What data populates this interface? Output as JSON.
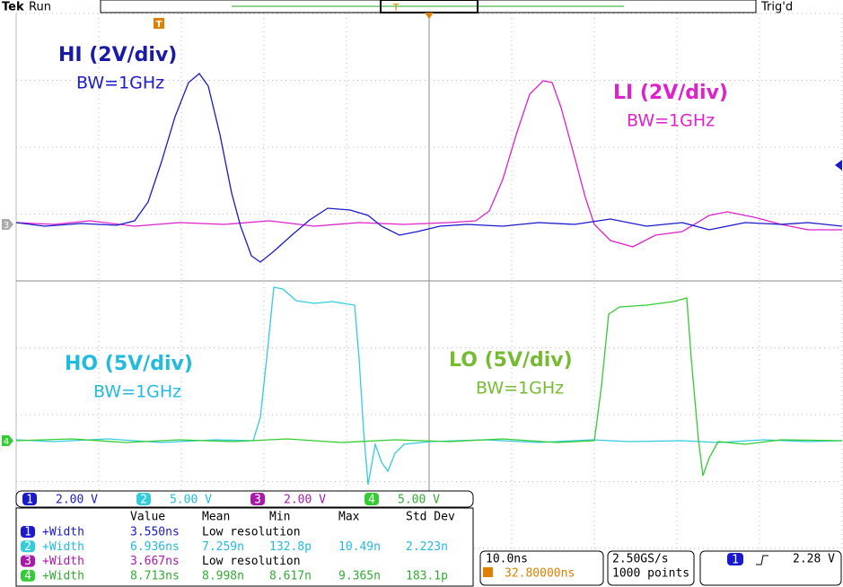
{
  "header": {
    "brand": "Tek",
    "status": "Run",
    "trigger_status": "Trig'd",
    "trigger_marker": "T",
    "position_marker": "T"
  },
  "ground_markers": [
    "3",
    "4"
  ],
  "labels": [
    {
      "title": "HI (2V/div)",
      "bw": "BW=1GHz"
    },
    {
      "title": "LI (2V/div)",
      "bw": "BW=1GHz"
    },
    {
      "title": "HO (5V/div)",
      "bw": "BW=1GHz"
    },
    {
      "title": "LO (5V/div)",
      "bw": "BW=1GHz"
    }
  ],
  "channels": [
    {
      "num": "1",
      "scale": "2.00 V"
    },
    {
      "num": "2",
      "scale": "5.00 V"
    },
    {
      "num": "3",
      "scale": "2.00 V"
    },
    {
      "num": "4",
      "scale": "5.00 V"
    }
  ],
  "measurements": {
    "columns": [
      "Value",
      "Mean",
      "Min",
      "Max",
      "Std Dev"
    ],
    "rows": [
      {
        "ch": "1",
        "name": "+Width",
        "cells": [
          "3.550ns",
          "Low resolution"
        ]
      },
      {
        "ch": "2",
        "name": "+Width",
        "cells": [
          "6.936ns",
          "7.259n",
          "132.8p",
          "10.49n",
          "2.223n"
        ]
      },
      {
        "ch": "3",
        "name": "+Width",
        "cells": [
          "3.667ns",
          "Low resolution"
        ]
      },
      {
        "ch": "4",
        "name": "+Width",
        "cells": [
          "8.713ns",
          "8.998n",
          "8.617n",
          "9.365n",
          "183.1p"
        ]
      }
    ]
  },
  "timebase": {
    "scale": "10.0ns",
    "delay": "32.80000ns",
    "sample_rate": "2.50GS/s",
    "record": "1000 points"
  },
  "trigger": {
    "source": "1",
    "level": "2.28 V"
  }
}
